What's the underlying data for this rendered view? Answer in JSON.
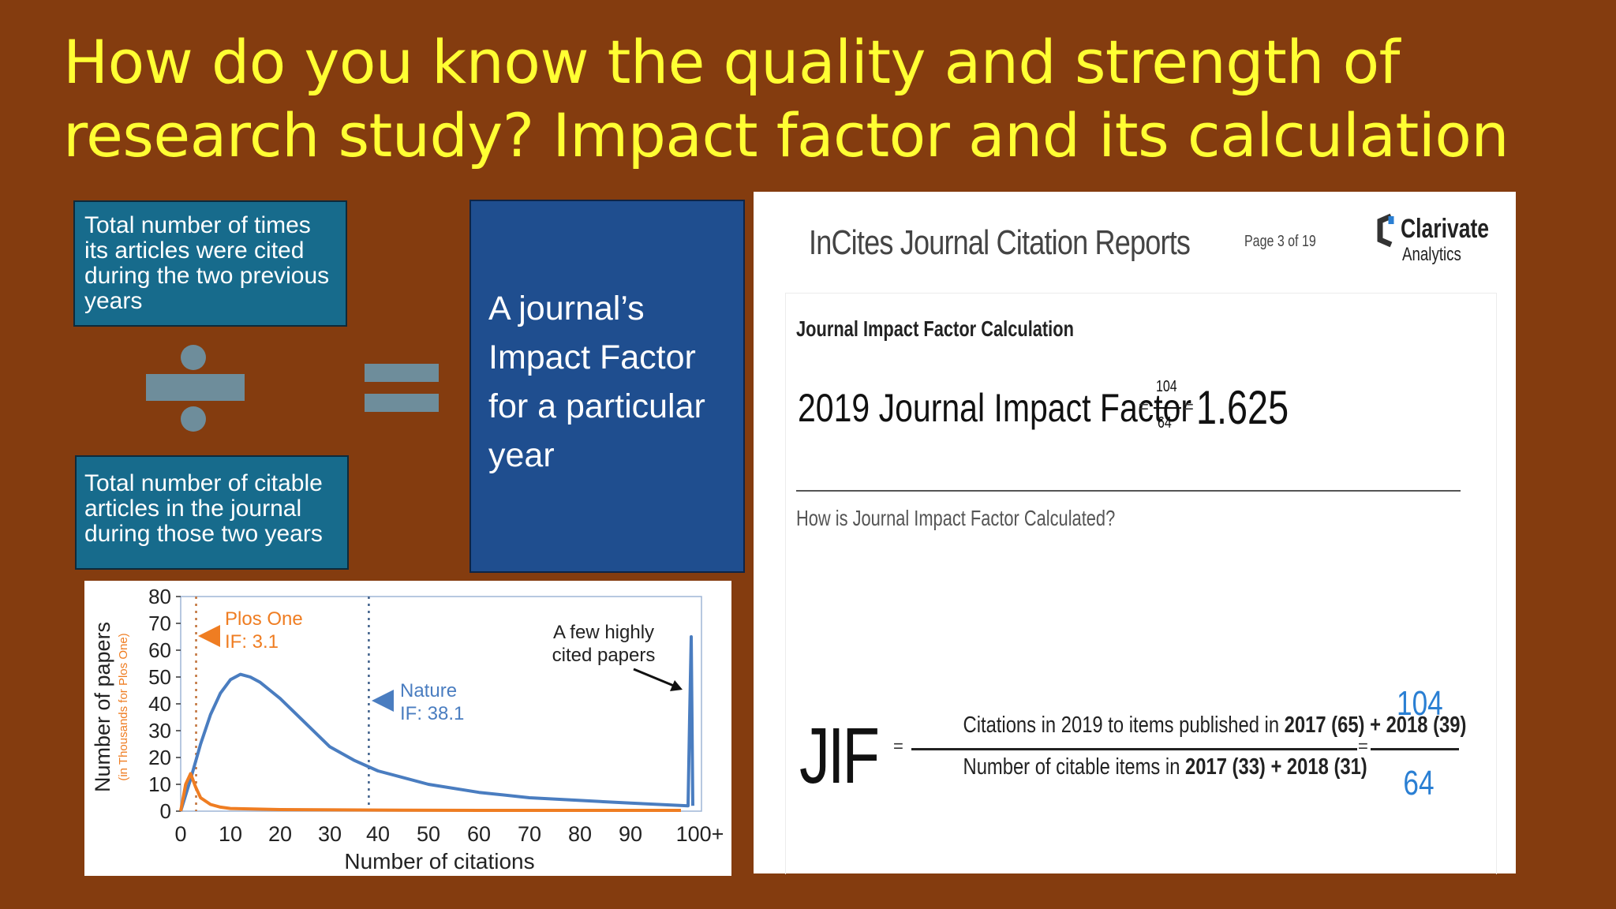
{
  "slide": {
    "title": "How do you know the quality and strength of research study? Impact factor and its calculation"
  },
  "formula": {
    "numerator_box": "Total number of times its articles were cited during the two previous years",
    "denominator_box": "Total number of citable articles in the journal during those two years",
    "divide_icon": "divide-icon",
    "equals_icon": "equals-icon",
    "result_box": "A journal’s Impact Factor for a particular year"
  },
  "colors": {
    "background": "#843c0f",
    "title": "#ffff33",
    "formula_box": "#176b8c",
    "result_box": "#1f4e8f",
    "operator": "#6e8d9b",
    "plos_series": "#ef7d22",
    "nature_series": "#4a7dc0"
  },
  "incites": {
    "header": "InCites Journal Citation Reports",
    "page": "Page 3 of 19",
    "brand": "Clarivate",
    "brand_sub": "Analytics",
    "section_title": "Journal Impact Factor Calculation",
    "jif_label": "2019 Journal Impact Factor",
    "frac_num": "104",
    "frac_den": "64",
    "result": "1.625",
    "question": "How is Journal Impact Factor Calculated?",
    "jif_abbr": "JIF",
    "numerator_prefix": "Citations in 2019 to items published in",
    "numerator_bold": "2017 (65) + 2018 (39)",
    "denominator_prefix": "Number of citable items in",
    "denominator_bold": "2017 (33) + 2018 (31)",
    "value_num": "104",
    "value_den": "64"
  },
  "chart_data": {
    "type": "line",
    "ylabel": "Number of papers",
    "ylabel_sub": "(in Thousands for Plos One)",
    "xlabel": "Number of citations",
    "x_ticks": [
      "0",
      "10",
      "20",
      "30",
      "40",
      "50",
      "60",
      "70",
      "80",
      "90",
      "100+"
    ],
    "y_ticks": [
      "80",
      "70",
      "60",
      "50",
      "40",
      "30",
      "20",
      "10",
      "0"
    ],
    "ylim": [
      0,
      80
    ],
    "series": [
      {
        "name": "Nature",
        "color": "#4a7dc0",
        "x": [
          0,
          2,
          4,
          6,
          8,
          10,
          12,
          14,
          16,
          18,
          20,
          25,
          30,
          35,
          40,
          50,
          60,
          70,
          80,
          90,
          97,
          98,
          99,
          100
        ],
        "values": [
          0,
          12,
          25,
          36,
          44,
          49,
          51,
          50,
          48,
          45,
          42,
          33,
          24,
          19,
          15,
          10,
          7,
          5,
          4,
          3,
          2,
          35,
          65,
          2
        ]
      },
      {
        "name": "Plos One",
        "color": "#ef7d22",
        "x": [
          0,
          1,
          2,
          3,
          4,
          6,
          8,
          10,
          20,
          40,
          60,
          80,
          100
        ],
        "values": [
          0,
          10,
          14,
          9,
          5,
          2.5,
          1.5,
          1,
          0.6,
          0.4,
          0.3,
          0.3,
          0.3
        ]
      }
    ],
    "markers": [
      {
        "label": "Plos One",
        "sublabel": "IF: 3.1",
        "x": 3.1,
        "color": "#ef7d22"
      },
      {
        "label": "Nature",
        "sublabel": "IF: 38.1",
        "x": 38.1,
        "color": "#4a7dc0"
      }
    ],
    "annotation": [
      "A few highly",
      "cited papers"
    ]
  }
}
